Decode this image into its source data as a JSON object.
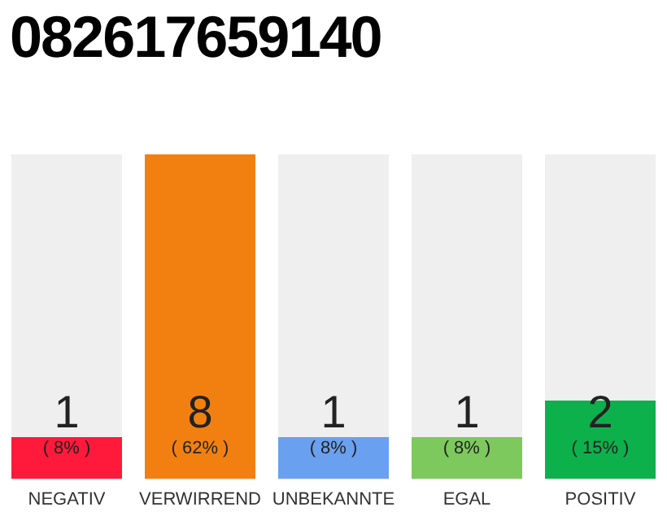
{
  "chart_data": {
    "type": "bar",
    "title": "082617659140",
    "categories": [
      "NEGATIV",
      "VERWIRREND",
      "UNBEKANNTE",
      "EGAL",
      "POSITIV"
    ],
    "values": [
      8,
      62,
      8,
      8,
      15
    ],
    "colors": [
      "#ff1a3c",
      "#f28010",
      "#6aa0f0",
      "#7dc95e",
      "#0cb14b"
    ],
    "annotations": [
      "1",
      "8",
      "1",
      "1",
      "2"
    ],
    "value_labels": [
      "( 8% )",
      "( 62% )",
      "( 8% )",
      "( 8% )",
      "( 15% )"
    ],
    "grid": false,
    "legend": false
  }
}
